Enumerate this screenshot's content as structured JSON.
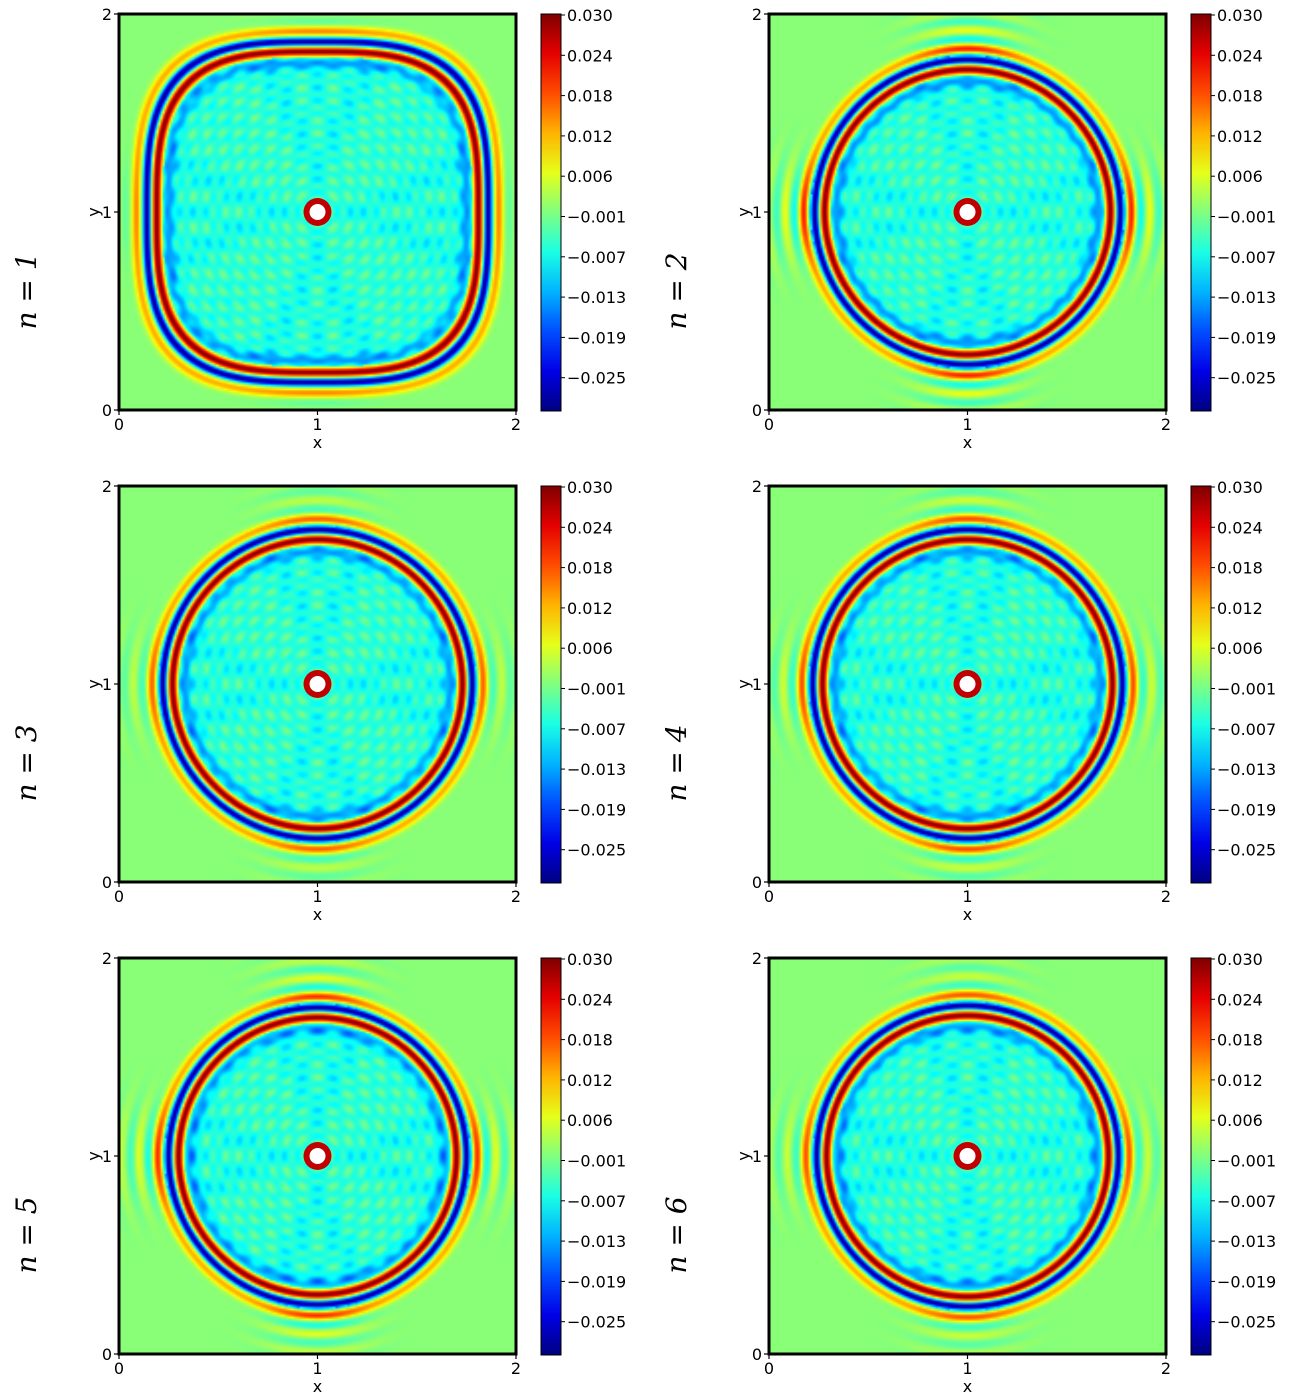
{
  "chart_data": [
    {
      "type": "heatmap",
      "row_label": "n = 1",
      "shape": "rounded-square",
      "ring_radius": 0.83,
      "inner_ring": 0.81,
      "fringe": 0.3,
      "xlabel": "x",
      "ylabel": "y",
      "xlim": [
        0,
        2
      ],
      "ylim": [
        0,
        2
      ],
      "x_ticks": [
        "0",
        "1",
        "2"
      ],
      "y_ticks": [
        "0",
        "1",
        "2"
      ],
      "colorbar": {
        "range": [
          -0.031,
          0.03
        ],
        "ticks": [
          "0.030",
          "0.024",
          "0.018",
          "0.012",
          "0.006",
          "−0.001",
          "−0.007",
          "−0.013",
          "−0.019",
          "−0.025"
        ]
      }
    },
    {
      "type": "heatmap",
      "row_label": "n = 2",
      "shape": "circle",
      "ring_radius": 0.74,
      "inner_ring": 0.72,
      "fringe": 1.0,
      "xlabel": "x",
      "ylabel": "y",
      "xlim": [
        0,
        2
      ],
      "ylim": [
        0,
        2
      ],
      "x_ticks": [
        "0",
        "1",
        "2"
      ],
      "y_ticks": [
        "0",
        "1",
        "2"
      ],
      "colorbar": {
        "range": [
          -0.031,
          0.03
        ],
        "ticks": [
          "0.030",
          "0.024",
          "0.018",
          "0.012",
          "0.006",
          "−0.001",
          "−0.007",
          "−0.013",
          "−0.019",
          "−0.025"
        ]
      }
    },
    {
      "type": "heatmap",
      "row_label": "n = 3",
      "shape": "circle",
      "ring_radius": 0.75,
      "inner_ring": 0.73,
      "fringe": 0.55,
      "xlabel": "x",
      "ylabel": "y",
      "xlim": [
        0,
        2
      ],
      "ylim": [
        0,
        2
      ],
      "x_ticks": [
        "0",
        "1",
        "2"
      ],
      "y_ticks": [
        "0",
        "1",
        "2"
      ],
      "colorbar": {
        "range": [
          -0.031,
          0.03
        ],
        "ticks": [
          "0.030",
          "0.024",
          "0.018",
          "0.012",
          "0.006",
          "−0.001",
          "−0.007",
          "−0.013",
          "−0.019",
          "−0.025"
        ]
      }
    },
    {
      "type": "heatmap",
      "row_label": "n = 4",
      "shape": "circle",
      "ring_radius": 0.75,
      "inner_ring": 0.73,
      "fringe": 0.7,
      "xlabel": "x",
      "ylabel": "y",
      "xlim": [
        0,
        2
      ],
      "ylim": [
        0,
        2
      ],
      "x_ticks": [
        "0",
        "1",
        "2"
      ],
      "y_ticks": [
        "0",
        "1",
        "2"
      ],
      "colorbar": {
        "range": [
          -0.031,
          0.03
        ],
        "ticks": [
          "0.030",
          "0.024",
          "0.018",
          "0.012",
          "0.006",
          "−0.001",
          "−0.007",
          "−0.013",
          "−0.019",
          "−0.025"
        ]
      }
    },
    {
      "type": "heatmap",
      "row_label": "n = 5",
      "shape": "circle",
      "ring_radius": 0.72,
      "inner_ring": 0.7,
      "fringe": 0.9,
      "xlabel": "x",
      "ylabel": "y",
      "xlim": [
        0,
        2
      ],
      "ylim": [
        0,
        2
      ],
      "x_ticks": [
        "0",
        "1",
        "2"
      ],
      "y_ticks": [
        "0",
        "1",
        "2"
      ],
      "colorbar": {
        "range": [
          -0.031,
          0.03
        ],
        "ticks": [
          "0.030",
          "0.024",
          "0.018",
          "0.012",
          "0.006",
          "−0.001",
          "−0.007",
          "−0.013",
          "−0.019",
          "−0.025"
        ]
      }
    },
    {
      "type": "heatmap",
      "row_label": "n = 6",
      "shape": "circle",
      "ring_radius": 0.73,
      "inner_ring": 0.71,
      "fringe": 0.65,
      "xlabel": "x",
      "ylabel": "y",
      "xlim": [
        0,
        2
      ],
      "ylim": [
        0,
        2
      ],
      "x_ticks": [
        "0",
        "1",
        "2"
      ],
      "y_ticks": [
        "0",
        "1",
        "2"
      ],
      "colorbar": {
        "range": [
          -0.031,
          0.03
        ],
        "ticks": [
          "0.030",
          "0.024",
          "0.018",
          "0.012",
          "0.006",
          "−0.001",
          "−0.007",
          "−0.013",
          "−0.019",
          "−0.025"
        ]
      }
    }
  ],
  "colormap": "jet",
  "background_color": "#80ff80",
  "source_color": "#ffffff"
}
